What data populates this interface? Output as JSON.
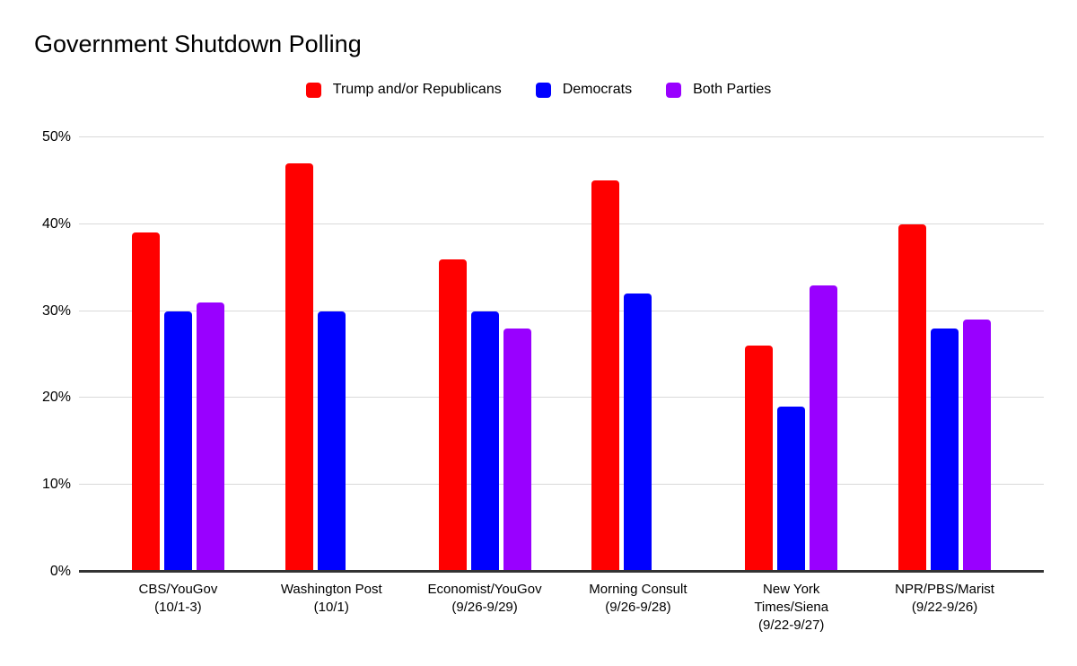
{
  "page": {
    "background_color": "#ffffff",
    "text_color": "#000000"
  },
  "chart_data": {
    "type": "bar",
    "title": "Government Shutdown Polling",
    "xlabel": "",
    "ylabel": "",
    "ylim": [
      0,
      50
    ],
    "grid": true,
    "legend_position": "top",
    "gridline_color": "#d9d9d9",
    "axis_color": "#333333",
    "categories": [
      "CBS/YouGov (10/1-3)",
      "Washington Post (10/1)",
      "Economist/YouGov (9/26-9/29)",
      "Morning Consult (9/26-9/28)",
      "New York Times/Siena (9/22-9/27)",
      "NPR/PBS/Marist (9/22-9/26)"
    ],
    "category_label_lines": [
      [
        "CBS/YouGov",
        "(10/1-3)"
      ],
      [
        "Washington Post",
        "(10/1)"
      ],
      [
        "Economist/YouGov",
        "(9/26-9/29)"
      ],
      [
        "Morning Consult",
        "(9/26-9/28)"
      ],
      [
        "New York",
        "Times/Siena",
        "(9/22-9/27)"
      ],
      [
        "NPR/PBS/Marist",
        "(9/22-9/26)"
      ]
    ],
    "series": [
      {
        "name": "Trump and/or Republicans",
        "color": "#ff0000",
        "values": [
          39,
          47,
          36,
          45,
          26,
          40
        ]
      },
      {
        "name": "Democrats",
        "color": "#0000ff",
        "values": [
          30,
          30,
          30,
          32,
          19,
          28
        ]
      },
      {
        "name": "Both Parties",
        "color": "#9900ff",
        "values": [
          31,
          null,
          28,
          null,
          33,
          29
        ]
      }
    ],
    "yticks": [
      {
        "value": 0,
        "label": "0%"
      },
      {
        "value": 10,
        "label": "10%"
      },
      {
        "value": 20,
        "label": "20%"
      },
      {
        "value": 30,
        "label": "30%"
      },
      {
        "value": 40,
        "label": "40%"
      },
      {
        "value": 50,
        "label": "50%"
      }
    ]
  }
}
